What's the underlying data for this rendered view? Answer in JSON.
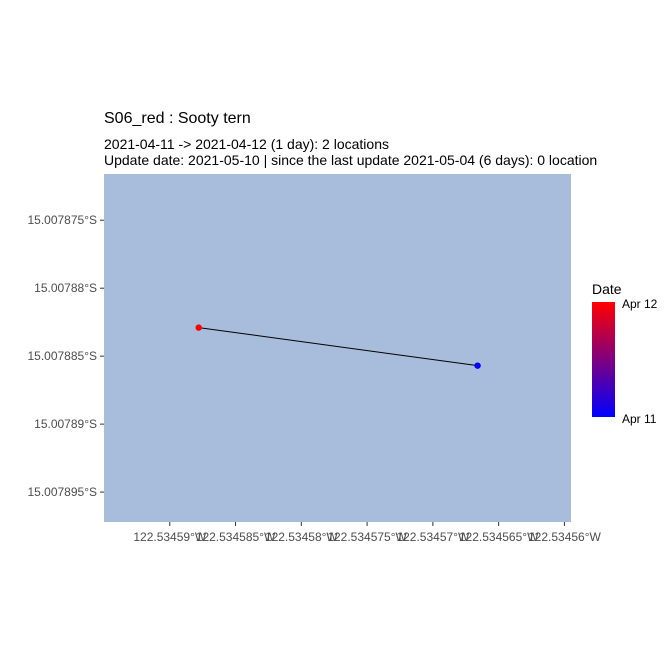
{
  "title": "S06_red  :  Sooty tern",
  "subtitle_line1": "2021-04-11 -> 2021-04-12 (1 day): 2 locations",
  "subtitle_line2": "Update date: 2021-05-10 |  since the last update 2021-05-04 (6 days): 0 location",
  "colors": {
    "panel": "#a7bddb",
    "start": "#0000ff",
    "end": "#ff0000",
    "track": "#000000",
    "tick_text": "#4d4d4d"
  },
  "legend": {
    "title": "Date",
    "top_label": "Apr 12",
    "bottom_label": "Apr 11"
  },
  "chart_data": {
    "type": "scatter",
    "title": "S06_red  :  Sooty tern",
    "x_ticks": [
      {
        "value": -122.53459,
        "label": "122.53459°W"
      },
      {
        "value": -122.534585,
        "label": "122.534585°W"
      },
      {
        "value": -122.53458,
        "label": "122.53458°W"
      },
      {
        "value": -122.534575,
        "label": "122.534575°W"
      },
      {
        "value": -122.53457,
        "label": "122.53457°W"
      },
      {
        "value": -122.534565,
        "label": "122.534565°W"
      },
      {
        "value": -122.53456,
        "label": "122.53456°W"
      }
    ],
    "y_ticks": [
      {
        "value": -15.007875,
        "label": "15.007875°S"
      },
      {
        "value": -15.00788,
        "label": "15.00788°S"
      },
      {
        "value": -15.007885,
        "label": "15.007885°S"
      },
      {
        "value": -15.00789,
        "label": "15.00789°S"
      },
      {
        "value": -15.007895,
        "label": "15.007895°S"
      }
    ],
    "xlim": [
      -122.534595,
      -122.5345595
    ],
    "ylim": [
      -15.0078972,
      -15.0078716
    ],
    "grid": false,
    "legend_position": "right",
    "points": [
      {
        "lon": -122.5345878,
        "lat": -15.0078829,
        "date": "2021-04-12",
        "color": "#ff0000"
      },
      {
        "lon": -122.5345666,
        "lat": -15.0078857,
        "date": "2021-04-11",
        "color": "#0000ff"
      }
    ]
  }
}
